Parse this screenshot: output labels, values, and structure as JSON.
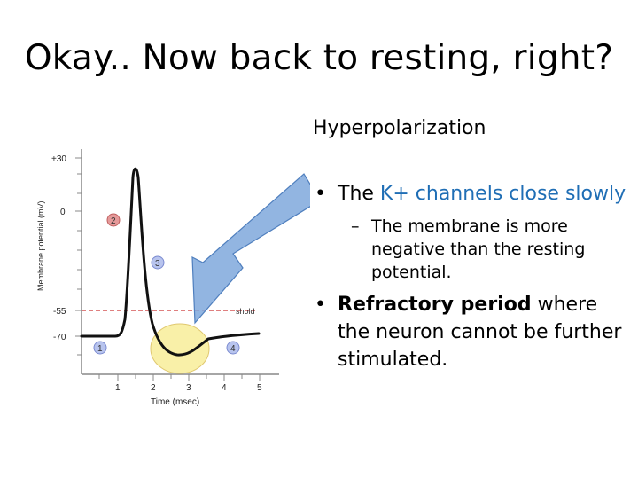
{
  "slide": {
    "title": "Okay.. Now back to resting, right?",
    "subheading": "Hyperpolarization"
  },
  "bullets": {
    "b1_prefix": "The",
    "b1_highlight": "K+ channels close slowly",
    "b2": "The membrane is more negative than the resting potential.",
    "b3_bold": "Refractory period",
    "b3_rest": " where the neuron cannot be further stimulated."
  },
  "graph": {
    "y_axis_label": "Membrane potential (mV)",
    "x_axis_label": "Time (msec)",
    "y_ticks": [
      "+30",
      "0",
      "-55",
      "-70"
    ],
    "x_ticks": [
      "1",
      "2",
      "3",
      "4",
      "5"
    ],
    "threshold_label": "shold",
    "phase_markers": [
      "1",
      "2",
      "3",
      "4"
    ],
    "colors": {
      "trace": "#111111",
      "threshold_line": "#cc3333",
      "marker_red": "#e59a9a",
      "marker_blue": "#b8c4ee",
      "highlight": "#f9f0a8",
      "arrow": "#7fa8dc",
      "highlight_text": "#1f6eb5"
    }
  }
}
